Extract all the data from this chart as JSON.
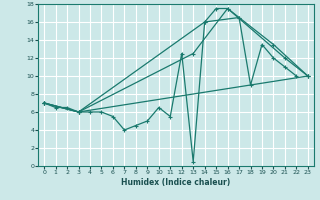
{
  "xlabel": "Humidex (Indice chaleur)",
  "bg_color": "#cce8e8",
  "grid_color": "#ffffff",
  "line_color": "#1a7a6e",
  "xlim": [
    -0.5,
    23.5
  ],
  "ylim": [
    0,
    18
  ],
  "xticks": [
    0,
    1,
    2,
    3,
    4,
    5,
    6,
    7,
    8,
    9,
    10,
    11,
    12,
    13,
    14,
    15,
    16,
    17,
    18,
    19,
    20,
    21,
    22,
    23
  ],
  "yticks": [
    0,
    2,
    4,
    6,
    8,
    10,
    12,
    14,
    16,
    18
  ],
  "series": [
    {
      "x": [
        0,
        1,
        2,
        3,
        4,
        5,
        6,
        7,
        8,
        9,
        10,
        11,
        12,
        13,
        14,
        15,
        16,
        17,
        18,
        19,
        20,
        21,
        22
      ],
      "y": [
        7,
        6.5,
        6.5,
        6,
        6,
        6,
        5.5,
        4,
        4.5,
        5,
        6.5,
        5.5,
        12.5,
        0.5,
        16,
        17.5,
        17.5,
        16.5,
        9,
        13.5,
        12,
        11,
        10
      ]
    },
    {
      "x": [
        0,
        3,
        23
      ],
      "y": [
        7,
        6,
        10
      ]
    },
    {
      "x": [
        0,
        3,
        13,
        16,
        21,
        23
      ],
      "y": [
        7,
        6,
        12.5,
        17.5,
        12,
        10
      ]
    },
    {
      "x": [
        0,
        3,
        14,
        17,
        20,
        23
      ],
      "y": [
        7,
        6,
        16,
        16.5,
        13.5,
        10
      ]
    }
  ]
}
